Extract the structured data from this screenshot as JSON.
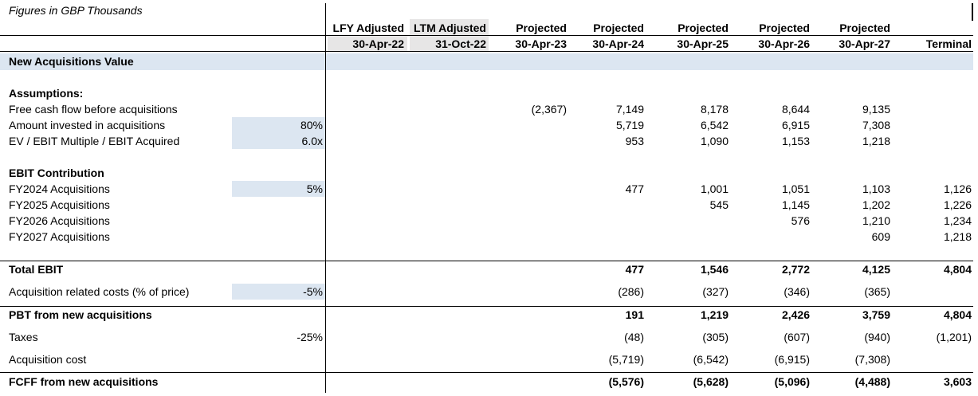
{
  "note": "Figures in GBP Thousands",
  "columns": [
    {
      "top": "LFY Adjusted",
      "date": "30-Apr-22"
    },
    {
      "top": "LTM Adjusted",
      "date": "31-Oct-22"
    },
    {
      "top": "Projected",
      "date": "30-Apr-23"
    },
    {
      "top": "Projected",
      "date": "30-Apr-24"
    },
    {
      "top": "Projected",
      "date": "30-Apr-25"
    },
    {
      "top": "Projected",
      "date": "30-Apr-26"
    },
    {
      "top": "Projected",
      "date": "30-Apr-27"
    },
    {
      "top": "",
      "date": "Terminal"
    }
  ],
  "section_title": "New Acquisitions Value",
  "rows": [
    {
      "label": "Assumptions:",
      "bold": true,
      "input": "",
      "values": [
        "",
        "",
        "",
        "",
        "",
        "",
        "",
        ""
      ]
    },
    {
      "label": "Free cash flow before acquisitions",
      "input": "",
      "values": [
        "",
        "",
        "(2,367)",
        "7,149",
        "8,178",
        "8,644",
        "9,135",
        ""
      ]
    },
    {
      "label": "Amount invested in acquisitions",
      "input": "80%",
      "values": [
        "",
        "",
        "",
        "5,719",
        "6,542",
        "6,915",
        "7,308",
        ""
      ]
    },
    {
      "label": "EV / EBIT Multiple / EBIT Acquired",
      "input": "6.0x",
      "values": [
        "",
        "",
        "",
        "953",
        "1,090",
        "1,153",
        "1,218",
        ""
      ]
    },
    {
      "label": "EBIT Contribution",
      "bold": true,
      "input": "",
      "values": [
        "",
        "",
        "",
        "",
        "",
        "",
        "",
        ""
      ]
    },
    {
      "label": "FY2024 Acquisitions",
      "input": "5%",
      "values": [
        "",
        "",
        "",
        "477",
        "1,001",
        "1,051",
        "1,103",
        "1,126"
      ]
    },
    {
      "label": "FY2025 Acquisitions",
      "input": "",
      "values": [
        "",
        "",
        "",
        "",
        "545",
        "1,145",
        "1,202",
        "1,226"
      ]
    },
    {
      "label": "FY2026 Acquisitions",
      "input": "",
      "values": [
        "",
        "",
        "",
        "",
        "",
        "576",
        "1,210",
        "1,234"
      ]
    },
    {
      "label": "FY2027 Acquisitions",
      "input": "",
      "values": [
        "",
        "",
        "",
        "",
        "",
        "",
        "609",
        "1,218"
      ]
    },
    {
      "label": "Total EBIT",
      "bold": true,
      "input": "",
      "values": [
        "",
        "",
        "",
        "477",
        "1,546",
        "2,772",
        "4,125",
        "4,804"
      ]
    },
    {
      "label": "Acquisition related costs (% of price)",
      "input": "-5%",
      "values": [
        "",
        "",
        "",
        "(286)",
        "(327)",
        "(346)",
        "(365)",
        ""
      ]
    },
    {
      "label": "PBT from new acquisitions",
      "bold": true,
      "input": "",
      "values": [
        "",
        "",
        "",
        "191",
        "1,219",
        "2,426",
        "3,759",
        "4,804"
      ]
    },
    {
      "label": "Taxes",
      "input": "-25%",
      "values": [
        "",
        "",
        "",
        "(48)",
        "(305)",
        "(607)",
        "(940)",
        "(1,201)"
      ]
    },
    {
      "label": "Acquisition cost",
      "input": "",
      "values": [
        "",
        "",
        "",
        "(5,719)",
        "(6,542)",
        "(6,915)",
        "(7,308)",
        ""
      ]
    },
    {
      "label": "FCFF from new acquisitions",
      "bold": true,
      "input": "",
      "values": [
        "",
        "",
        "",
        "(5,576)",
        "(5,628)",
        "(5,096)",
        "(4,488)",
        "3,603"
      ]
    }
  ]
}
